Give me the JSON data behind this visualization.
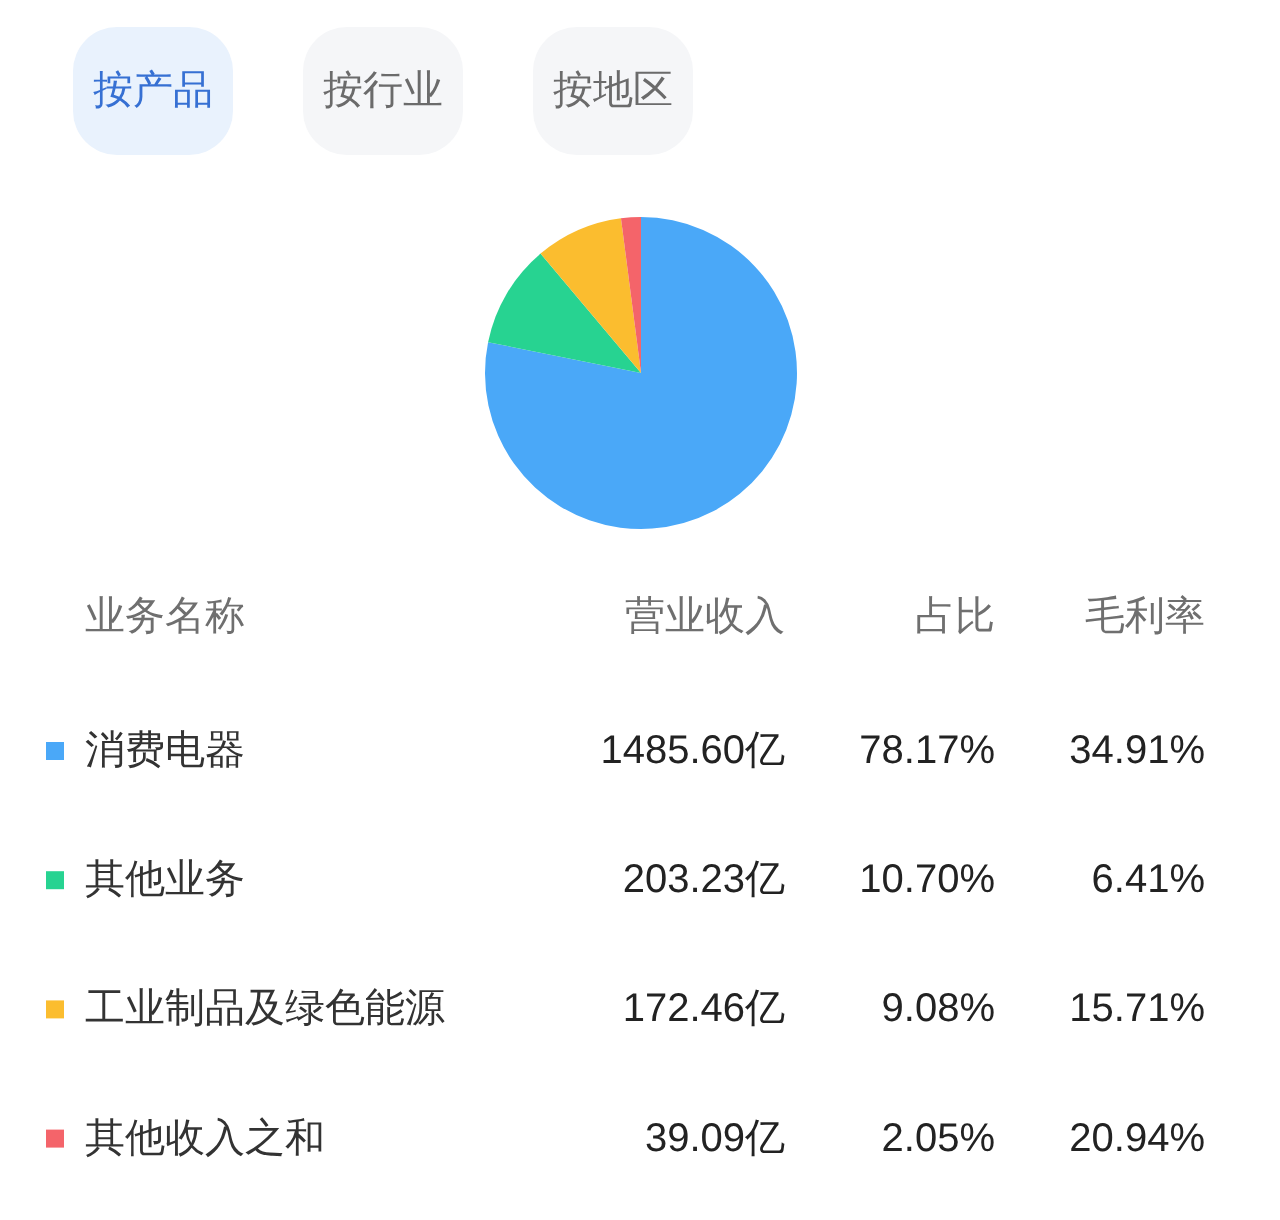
{
  "chart_data": {
    "type": "pie",
    "categories": [
      "消费电器",
      "其他业务",
      "工业制品及绿色能源",
      "其他收入之和"
    ],
    "values": [
      78.17,
      10.7,
      9.08,
      2.05
    ],
    "colors": [
      "#4aa8f8",
      "#27d391",
      "#fbbd2f",
      "#f4646a"
    ],
    "value_labels": [
      "78.17%",
      "10.70%",
      "9.08%",
      "2.05%"
    ],
    "legend": "bottom",
    "legend_title": "业务名称",
    "annotations": [
      "按产品",
      "按行业",
      "按地区",
      "营业收入",
      "占比",
      "毛利率",
      "1485.60亿",
      "34.91%",
      "203.23亿",
      "6.41%",
      "172.46亿",
      "15.71%",
      "39.09亿",
      "20.94%"
    ]
  }
}
